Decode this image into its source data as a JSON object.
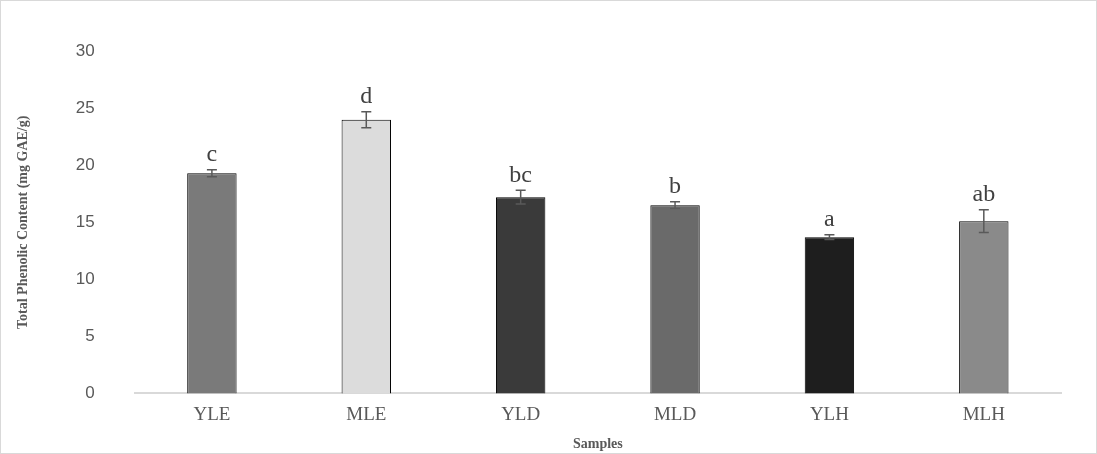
{
  "chart_data": {
    "type": "bar",
    "xlabel": "Samples",
    "ylabel": "Total Phenolic Content (mg GAE/g)",
    "categories": [
      "YLE",
      "MLE",
      "YLD",
      "MLD",
      "YLH",
      "MLH"
    ],
    "values": [
      19.3,
      24.0,
      17.2,
      16.5,
      13.7,
      15.1
    ],
    "errors": [
      0.3,
      0.7,
      0.6,
      0.3,
      0.2,
      1.0
    ],
    "colors": [
      "#7a7a7a",
      "#dcdcdc",
      "#3a3a3a",
      "#6a6a6a",
      "#1e1e1e",
      "#8a8a8a"
    ],
    "ylim": [
      0,
      30
    ],
    "yticks": [
      0,
      5,
      10,
      15,
      20,
      25,
      30
    ],
    "grid": false,
    "legend": false,
    "annotations": [
      {
        "text": "c",
        "x": "YLE",
        "y": 19.6
      },
      {
        "text": "d",
        "x": "MLE",
        "y": 24.7
      },
      {
        "text": "bc",
        "x": "YLD",
        "y": 17.8
      },
      {
        "text": "b",
        "x": "MLD",
        "y": 16.8
      },
      {
        "text": "a",
        "x": "YLH",
        "y": 13.9
      },
      {
        "text": "ab",
        "x": "MLH",
        "y": 16.1
      }
    ]
  }
}
